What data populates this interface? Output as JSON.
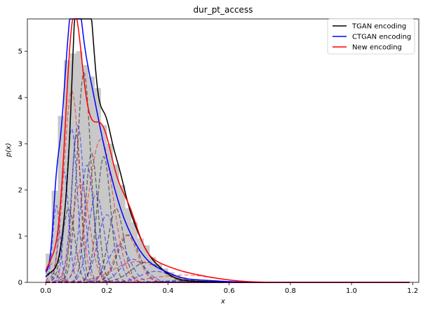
{
  "chart_data": {
    "type": "line",
    "title": "dur_pt_access",
    "xlabel": "x",
    "ylabel": "p(x)",
    "xlim": [
      -0.06,
      1.22
    ],
    "ylim": [
      0,
      5.7
    ],
    "xticks": [
      0.0,
      0.2,
      0.4,
      0.6,
      0.8,
      1.0,
      1.2
    ],
    "xtick_labels": [
      "0.0",
      "0.2",
      "0.4",
      "0.6",
      "0.8",
      "1.0",
      "1.2"
    ],
    "yticks": [
      0,
      1,
      2,
      3,
      4,
      5
    ],
    "ytick_labels": [
      "0",
      "1",
      "2",
      "3",
      "4",
      "5"
    ],
    "grid": false,
    "legend_position": "top-right",
    "histogram": {
      "color": "#c8c8c8",
      "bins": [
        {
          "x0": 0.0,
          "x1": 0.02,
          "y": 0.62
        },
        {
          "x0": 0.02,
          "x1": 0.04,
          "y": 1.98
        },
        {
          "x0": 0.04,
          "x1": 0.06,
          "y": 3.6
        },
        {
          "x0": 0.06,
          "x1": 0.08,
          "y": 4.8
        },
        {
          "x0": 0.08,
          "x1": 0.1,
          "y": 4.95
        },
        {
          "x0": 0.1,
          "x1": 0.12,
          "y": 5.0
        },
        {
          "x0": 0.12,
          "x1": 0.14,
          "y": 4.7
        },
        {
          "x0": 0.14,
          "x1": 0.16,
          "y": 4.45
        },
        {
          "x0": 0.16,
          "x1": 0.18,
          "y": 4.2
        },
        {
          "x0": 0.18,
          "x1": 0.2,
          "y": 3.4
        },
        {
          "x0": 0.2,
          "x1": 0.22,
          "y": 3.0
        },
        {
          "x0": 0.22,
          "x1": 0.24,
          "y": 2.55
        },
        {
          "x0": 0.24,
          "x1": 0.26,
          "y": 2.1
        },
        {
          "x0": 0.26,
          "x1": 0.28,
          "y": 1.6
        },
        {
          "x0": 0.28,
          "x1": 0.3,
          "y": 1.3
        },
        {
          "x0": 0.3,
          "x1": 0.32,
          "y": 0.95
        },
        {
          "x0": 0.32,
          "x1": 0.34,
          "y": 0.8
        },
        {
          "x0": 0.34,
          "x1": 0.36,
          "y": 0.55
        },
        {
          "x0": 0.36,
          "x1": 0.38,
          "y": 0.4
        },
        {
          "x0": 0.38,
          "x1": 0.4,
          "y": 0.3
        },
        {
          "x0": 0.4,
          "x1": 0.42,
          "y": 0.22
        },
        {
          "x0": 0.42,
          "x1": 0.44,
          "y": 0.15
        },
        {
          "x0": 0.44,
          "x1": 0.46,
          "y": 0.11
        },
        {
          "x0": 0.46,
          "x1": 0.5,
          "y": 0.07
        },
        {
          "x0": 0.5,
          "x1": 0.55,
          "y": 0.04
        },
        {
          "x0": 0.55,
          "x1": 0.6,
          "y": 0.02
        }
      ]
    },
    "series": [
      {
        "name": "TGAN encoding",
        "color": "#000000",
        "components": [
          {
            "mu": 0.02,
            "sigma": 0.02,
            "w": 0.01
          },
          {
            "mu": 0.075,
            "sigma": 0.02,
            "w": 0.08
          },
          {
            "mu": 0.1,
            "sigma": 0.015,
            "w": 0.12
          },
          {
            "mu": 0.125,
            "sigma": 0.022,
            "w": 0.25
          },
          {
            "mu": 0.15,
            "sigma": 0.02,
            "w": 0.14
          },
          {
            "mu": 0.19,
            "sigma": 0.022,
            "w": 0.15
          },
          {
            "mu": 0.23,
            "sigma": 0.025,
            "w": 0.1
          },
          {
            "mu": 0.27,
            "sigma": 0.035,
            "w": 0.09
          },
          {
            "mu": 0.33,
            "sigma": 0.05,
            "w": 0.055
          },
          {
            "mu": 0.45,
            "sigma": 0.08,
            "w": 0.005
          }
        ]
      },
      {
        "name": "CTGAN encoding",
        "color": "#0000ff",
        "components": [
          {
            "mu": 0.0,
            "sigma": 0.02,
            "w": 0.01
          },
          {
            "mu": 0.035,
            "sigma": 0.012,
            "w": 0.05
          },
          {
            "mu": 0.06,
            "sigma": 0.015,
            "w": 0.09
          },
          {
            "mu": 0.085,
            "sigma": 0.018,
            "w": 0.15
          },
          {
            "mu": 0.105,
            "sigma": 0.02,
            "w": 0.17
          },
          {
            "mu": 0.135,
            "sigma": 0.022,
            "w": 0.14
          },
          {
            "mu": 0.165,
            "sigma": 0.025,
            "w": 0.12
          },
          {
            "mu": 0.2,
            "sigma": 0.03,
            "w": 0.11
          },
          {
            "mu": 0.24,
            "sigma": 0.035,
            "w": 0.07
          },
          {
            "mu": 0.285,
            "sigma": 0.04,
            "w": 0.05
          },
          {
            "mu": 0.36,
            "sigma": 0.05,
            "w": 0.03
          },
          {
            "mu": 0.48,
            "sigma": 0.08,
            "w": 0.01
          }
        ]
      },
      {
        "name": "New encoding",
        "color": "#ff0000",
        "components": [
          {
            "mu": 0.02,
            "sigma": 0.02,
            "w": 0.02
          },
          {
            "mu": 0.085,
            "sigma": 0.025,
            "w": 0.26
          },
          {
            "mu": 0.115,
            "sigma": 0.028,
            "w": 0.15
          },
          {
            "mu": 0.18,
            "sigma": 0.04,
            "w": 0.31
          },
          {
            "mu": 0.265,
            "sigma": 0.035,
            "w": 0.09
          },
          {
            "mu": 0.3,
            "sigma": 0.08,
            "w": 0.09
          },
          {
            "mu": 0.45,
            "sigma": 0.1,
            "w": 0.04
          }
        ]
      }
    ]
  }
}
